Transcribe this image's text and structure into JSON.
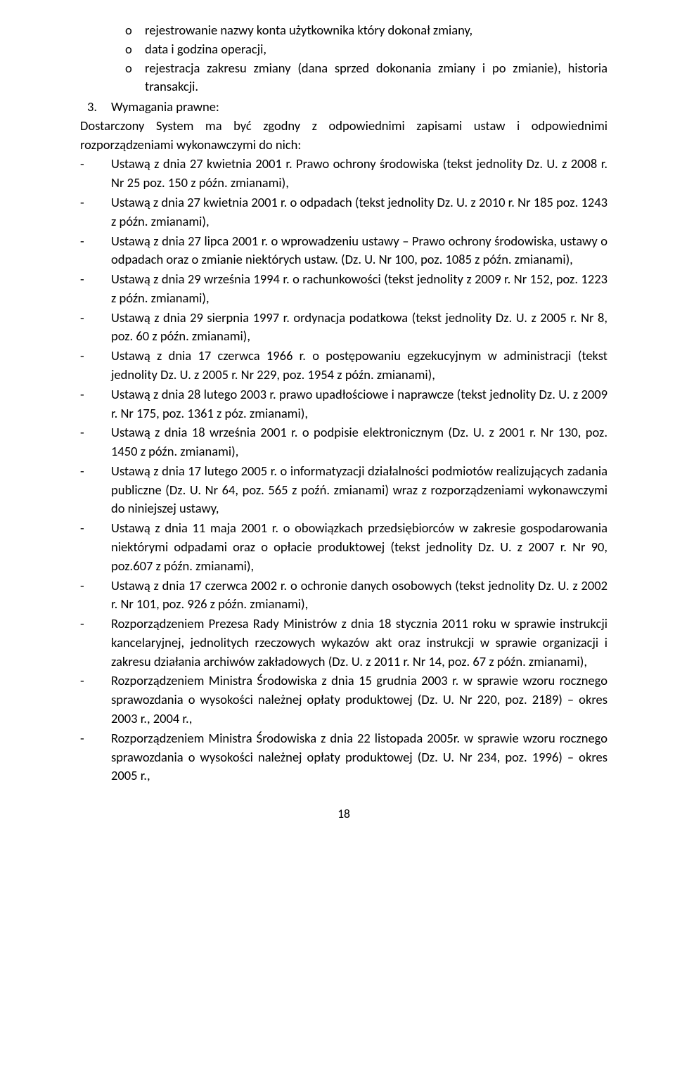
{
  "sub_bullets": [
    "rejestrowanie nazwy konta użytkownika który dokonał zmiany,",
    "data i godzina operacji,",
    "rejestracja zakresu zmiany (dana sprzed dokonania zmiany i po zmianie), historia transakcji."
  ],
  "sub_bullet_marker": "o",
  "numbered_item": {
    "marker": "3.",
    "text": "Wymagania prawne:"
  },
  "intro": "Dostarczony System ma być zgodny z odpowiednimi zapisami ustaw i odpowiednimi rozporządzeniami wykonawczymi do nich:",
  "dash_marker": "-",
  "dash_items": [
    "Ustawą z dnia 27 kwietnia 2001 r. Prawo ochrony środowiska (tekst jednolity Dz. U. z 2008 r. Nr 25 poz. 150 z późn. zmianami),",
    "Ustawą z dnia 27 kwietnia 2001 r. o odpadach (tekst jednolity Dz. U. z 2010 r. Nr 185 poz. 1243 z późn. zmianami),",
    "Ustawą z dnia 27 lipca 2001 r. o wprowadzeniu ustawy – Prawo ochrony środowiska, ustawy o odpadach oraz o zmianie niektórych ustaw. (Dz. U. Nr 100, poz. 1085 z późn. zmianami),",
    "Ustawą z dnia 29 września 1994 r. o rachunkowości (tekst jednolity z 2009 r. Nr 152, poz. 1223 z późn. zmianami),",
    "Ustawą z dnia 29 sierpnia 1997 r. ordynacja podatkowa (tekst jednolity Dz. U. z 2005 r. Nr 8, poz. 60 z późn. zmianami),",
    "Ustawą z dnia 17 czerwca 1966 r. o postępowaniu egzekucyjnym w administracji (tekst jednolity Dz. U. z 2005 r. Nr 229, poz. 1954 z późn. zmianami),",
    "Ustawą z dnia 28 lutego 2003 r. prawo upadłościowe i naprawcze (tekst jednolity Dz. U. z 2009 r. Nr 175, poz. 1361 z póz. zmianami),",
    "Ustawą z dnia 18 września 2001 r. o podpisie elektronicznym (Dz. U. z 2001 r. Nr 130, poz. 1450 z późn. zmianami),",
    "Ustawą z dnia 17 lutego 2005 r. o informatyzacji działalności podmiotów realizujących zadania publiczne (Dz. U. Nr 64, poz. 565 z poźń. zmianami) wraz z rozporządzeniami wykonawczymi do niniejszej ustawy,",
    "Ustawą z dnia 11 maja 2001 r. o obowiązkach przedsiębiorców w zakresie gospodarowania niektórymi odpadami oraz o opłacie produktowej (tekst jednolity Dz. U. z 2007 r. Nr 90, poz.607 z późn. zmianami),",
    "Ustawą z dnia 17 czerwca 2002 r. o ochronie danych osobowych (tekst jednolity Dz. U. z 2002 r. Nr 101, poz. 926 z późn. zmianami),",
    "Rozporządzeniem Prezesa Rady Ministrów z dnia 18 stycznia 2011 roku w sprawie instrukcji kancelaryjnej, jednolitych rzeczowych wykazów akt oraz instrukcji w sprawie organizacji i zakresu działania archiwów zakładowych (Dz. U. z 2011 r. Nr 14, poz. 67 z późn. zmianami),",
    "Rozporządzeniem Ministra Środowiska z dnia 15 grudnia 2003 r. w sprawie wzoru rocznego sprawozdania o wysokości należnej opłaty produktowej (Dz. U. Nr 220, poz. 2189) – okres 2003 r., 2004 r.,",
    "Rozporządzeniem Ministra Środowiska z dnia 22 listopada 2005r. w sprawie wzoru rocznego sprawozdania o wysokości należnej opłaty produktowej (Dz. U. Nr 234, poz. 1996) – okres 2005 r.,"
  ],
  "page_number": "18"
}
